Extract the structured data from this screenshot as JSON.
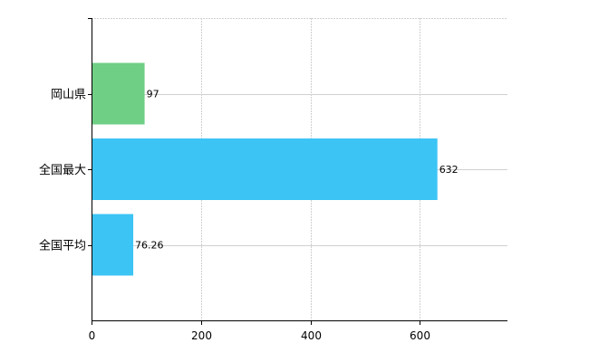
{
  "chart_data": {
    "type": "bar",
    "orientation": "horizontal",
    "categories": [
      "岡山県",
      "全国最大",
      "全国平均"
    ],
    "values": [
      97,
      632,
      76.26
    ],
    "data_labels": [
      "97",
      "632",
      "76.26"
    ],
    "bar_colors": [
      "#6fcf85",
      "#3cc4f5",
      "#3cc4f5"
    ],
    "xlim": [
      0,
      760
    ],
    "x_ticks": [
      0,
      200,
      400,
      600
    ],
    "x_tick_labels": [
      "0",
      "200",
      "400",
      "600"
    ],
    "title": "",
    "xlabel": "",
    "ylabel": "",
    "grid": true,
    "legend": "none"
  }
}
